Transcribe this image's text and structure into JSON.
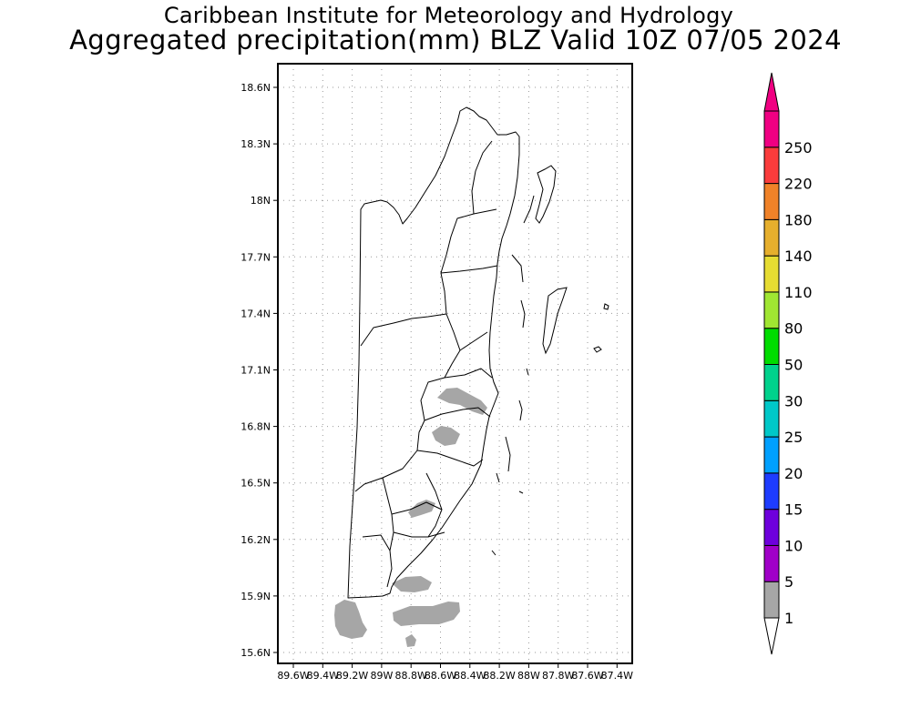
{
  "header": {
    "institute": "Caribbean Institute for Meteorology and Hydrology",
    "product": "Aggregated precipitation(mm) BLZ Valid 10Z 07/05 2024"
  },
  "map": {
    "lat_ticks": [
      "18.6N",
      "18.3N",
      "18N",
      "17.7N",
      "17.4N",
      "17.1N",
      "16.8N",
      "16.5N",
      "16.2N",
      "15.9N",
      "15.6N"
    ],
    "lon_ticks": [
      "89.6W",
      "89.4W",
      "89.2W",
      "89W",
      "88.8W",
      "88.6W",
      "88.4W",
      "88.2W",
      "88W",
      "87.8W",
      "87.6W",
      "87.4W"
    ],
    "grid": true,
    "region": "Belize",
    "precip_color": "#a6a6a6"
  },
  "colorbar": {
    "levels": [
      "1",
      "5",
      "10",
      "15",
      "20",
      "25",
      "30",
      "50",
      "80",
      "110",
      "140",
      "180",
      "220",
      "250"
    ],
    "colors": [
      "#a6a6a6",
      "#a000c8",
      "#6e00dc",
      "#1e3cff",
      "#00a0ff",
      "#00c8c8",
      "#00d28c",
      "#00dc00",
      "#a0e632",
      "#e6dc32",
      "#e6af2d",
      "#f08228",
      "#fa3c3c",
      "#f00082"
    ],
    "under_color": "#ffffff",
    "over_color": "#f00082"
  }
}
